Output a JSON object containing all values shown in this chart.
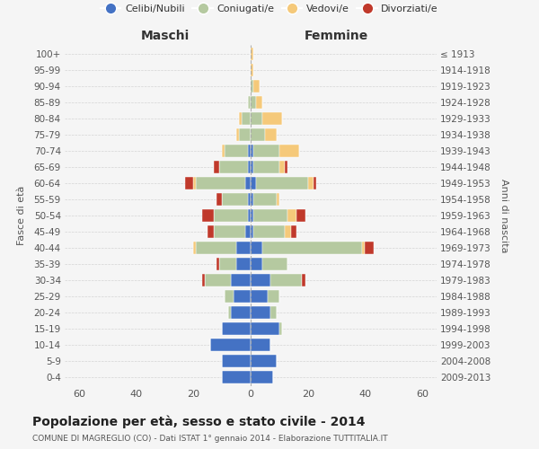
{
  "age_groups": [
    "0-4",
    "5-9",
    "10-14",
    "15-19",
    "20-24",
    "25-29",
    "30-34",
    "35-39",
    "40-44",
    "45-49",
    "50-54",
    "55-59",
    "60-64",
    "65-69",
    "70-74",
    "75-79",
    "80-84",
    "85-89",
    "90-94",
    "95-99",
    "100+"
  ],
  "birth_years": [
    "2009-2013",
    "2004-2008",
    "1999-2003",
    "1994-1998",
    "1989-1993",
    "1984-1988",
    "1979-1983",
    "1974-1978",
    "1969-1973",
    "1964-1968",
    "1959-1963",
    "1954-1958",
    "1949-1953",
    "1944-1948",
    "1939-1943",
    "1934-1938",
    "1929-1933",
    "1924-1928",
    "1919-1923",
    "1914-1918",
    "≤ 1913"
  ],
  "male": {
    "celibi": [
      10,
      10,
      14,
      10,
      7,
      6,
      7,
      5,
      5,
      2,
      1,
      1,
      2,
      1,
      1,
      0,
      0,
      0,
      0,
      0,
      0
    ],
    "coniugati": [
      0,
      0,
      0,
      0,
      1,
      3,
      9,
      6,
      14,
      11,
      12,
      9,
      17,
      10,
      8,
      4,
      3,
      1,
      0,
      0,
      0
    ],
    "vedovi": [
      0,
      0,
      0,
      0,
      0,
      0,
      0,
      0,
      1,
      0,
      0,
      0,
      1,
      0,
      1,
      1,
      1,
      0,
      0,
      0,
      0
    ],
    "divorziati": [
      0,
      0,
      0,
      0,
      0,
      0,
      1,
      1,
      0,
      2,
      4,
      2,
      3,
      2,
      0,
      0,
      0,
      0,
      0,
      0,
      0
    ]
  },
  "female": {
    "nubili": [
      8,
      9,
      7,
      10,
      7,
      6,
      7,
      4,
      4,
      1,
      1,
      1,
      2,
      1,
      1,
      0,
      0,
      0,
      0,
      0,
      0
    ],
    "coniugate": [
      0,
      0,
      0,
      1,
      2,
      4,
      11,
      9,
      35,
      11,
      12,
      8,
      18,
      9,
      9,
      5,
      4,
      2,
      1,
      0,
      0
    ],
    "vedove": [
      0,
      0,
      0,
      0,
      0,
      0,
      0,
      0,
      1,
      2,
      3,
      1,
      2,
      2,
      7,
      4,
      7,
      2,
      2,
      1,
      1
    ],
    "divorziate": [
      0,
      0,
      0,
      0,
      0,
      0,
      1,
      0,
      3,
      2,
      3,
      0,
      1,
      1,
      0,
      0,
      0,
      0,
      0,
      0,
      0
    ]
  },
  "colors": {
    "celibi_nubili": "#4472c4",
    "coniugati": "#b5c9a0",
    "vedovi": "#f5c97a",
    "divorziati": "#c0392b"
  },
  "xlim": 65,
  "title": "Popolazione per età, sesso e stato civile - 2014",
  "subtitle": "COMUNE DI MAGREGLIO (CO) - Dati ISTAT 1° gennaio 2014 - Elaborazione TUTTITALIA.IT",
  "ylabel_left": "Fasce di età",
  "ylabel_right": "Anni di nascita",
  "xlabel_left": "Maschi",
  "xlabel_right": "Femmine",
  "legend_labels": [
    "Celibi/Nubili",
    "Coniugati/e",
    "Vedovi/e",
    "Divorziati/e"
  ],
  "background_color": "#f5f5f5",
  "grid_color": "#cccccc"
}
